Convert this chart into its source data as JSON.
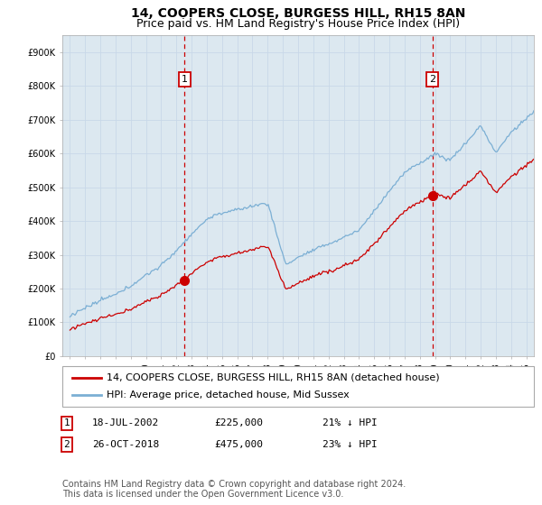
{
  "title": "14, COOPERS CLOSE, BURGESS HILL, RH15 8AN",
  "subtitle": "Price paid vs. HM Land Registry's House Price Index (HPI)",
  "ylabel_ticks": [
    "£0",
    "£100K",
    "£200K",
    "£300K",
    "£400K",
    "£500K",
    "£600K",
    "£700K",
    "£800K",
    "£900K"
  ],
  "ytick_values": [
    0,
    100000,
    200000,
    300000,
    400000,
    500000,
    600000,
    700000,
    800000,
    900000
  ],
  "ylim": [
    0,
    950000
  ],
  "xlim_left": 1994.5,
  "xlim_right": 2025.5,
  "sale1_date": 2002.54,
  "sale1_price": 225000,
  "sale1_label": "1",
  "sale2_date": 2018.82,
  "sale2_price": 475000,
  "sale2_label": "2",
  "legend_label1": "14, COOPERS CLOSE, BURGESS HILL, RH15 8AN (detached house)",
  "legend_label2": "HPI: Average price, detached house, Mid Sussex",
  "footer": "Contains HM Land Registry data © Crown copyright and database right 2024.\nThis data is licensed under the Open Government Licence v3.0.",
  "line_color_house": "#cc0000",
  "line_color_hpi": "#7bafd4",
  "dashed_line_color": "#cc0000",
  "grid_color": "#c8d8e8",
  "background_color": "#ffffff",
  "plot_bg_color": "#dce8f0",
  "title_fontsize": 10,
  "subtitle_fontsize": 9,
  "tick_fontsize": 7,
  "legend_fontsize": 8,
  "footer_fontsize": 7,
  "anno_fontsize": 8
}
